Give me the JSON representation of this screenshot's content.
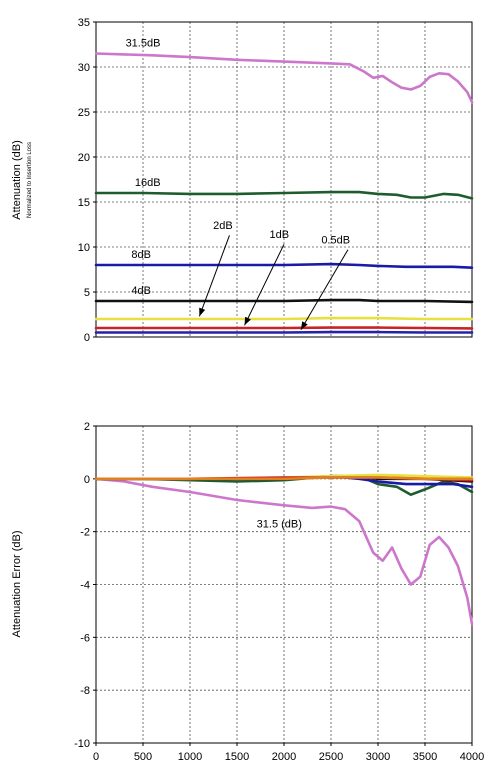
{
  "chart_data": [
    {
      "type": "line",
      "ylabel": "Attenuation (dB)",
      "ylabel_sub": "Normalized to Insertion Loss",
      "xlim": [
        0,
        4000
      ],
      "ylim": [
        0,
        35
      ],
      "x_ticks": [
        0,
        500,
        1000,
        1500,
        2000,
        2500,
        3000,
        3500,
        4000
      ],
      "y_ticks": [
        0,
        5,
        10,
        15,
        20,
        25,
        30,
        35
      ],
      "grid": true,
      "series": [
        {
          "name": "31.5dB",
          "color": "#cc77cc",
          "x": [
            0,
            300,
            600,
            1000,
            1500,
            2000,
            2500,
            2700,
            2850,
            2950,
            3050,
            3150,
            3250,
            3350,
            3450,
            3550,
            3650,
            3750,
            3850,
            3950,
            4000
          ],
          "y": [
            31.5,
            31.4,
            31.3,
            31.1,
            30.8,
            30.6,
            30.4,
            30.3,
            29.5,
            28.8,
            29.0,
            28.3,
            27.7,
            27.5,
            27.9,
            28.9,
            29.3,
            29.2,
            28.4,
            27.2,
            26.1
          ]
        },
        {
          "name": "16dB",
          "color": "#1e5c2e",
          "x": [
            0,
            500,
            1000,
            1500,
            2000,
            2500,
            2800,
            3000,
            3200,
            3350,
            3500,
            3700,
            3850,
            4000
          ],
          "y": [
            16.0,
            16.0,
            15.9,
            15.9,
            16.0,
            16.1,
            16.1,
            15.9,
            15.8,
            15.5,
            15.5,
            15.9,
            15.8,
            15.4
          ]
        },
        {
          "name": "8dB",
          "color": "#1a1aa8",
          "x": [
            0,
            500,
            1000,
            1500,
            2000,
            2500,
            2800,
            3000,
            3300,
            3600,
            3800,
            4000
          ],
          "y": [
            8.0,
            8.0,
            8.0,
            8.0,
            8.0,
            8.1,
            8.0,
            7.9,
            7.8,
            7.8,
            7.8,
            7.7
          ]
        },
        {
          "name": "4dB",
          "color": "#111111",
          "x": [
            0,
            1000,
            2000,
            2500,
            2800,
            3000,
            3500,
            4000
          ],
          "y": [
            4.0,
            4.0,
            4.0,
            4.1,
            4.1,
            4.0,
            4.0,
            3.9
          ]
        },
        {
          "name": "2dB",
          "color": "#e8e040",
          "x": [
            0,
            1000,
            2000,
            2500,
            3000,
            3500,
            4000
          ],
          "y": [
            2.0,
            2.0,
            2.0,
            2.1,
            2.1,
            2.0,
            2.0
          ]
        },
        {
          "name": "1dB",
          "color": "#cc2222",
          "x": [
            0,
            1000,
            2000,
            2500,
            3000,
            3500,
            4000
          ],
          "y": [
            1.0,
            1.0,
            1.0,
            1.05,
            1.05,
            1.0,
            0.95
          ]
        },
        {
          "name": "0.5dB",
          "color": "#2222aa",
          "x": [
            0,
            1000,
            2000,
            2500,
            3000,
            3500,
            4000
          ],
          "y": [
            0.5,
            0.5,
            0.5,
            0.55,
            0.55,
            0.5,
            0.5
          ]
        }
      ],
      "annotations": [
        {
          "text": "31.5dB",
          "x": 500,
          "y": 32.3
        },
        {
          "text": "16dB",
          "x": 550,
          "y": 16.8
        },
        {
          "text": "8dB",
          "x": 480,
          "y": 8.8
        },
        {
          "text": "4dB",
          "x": 480,
          "y": 4.8
        },
        {
          "text": "2dB",
          "x": 1350,
          "y": 12.0
        },
        {
          "text": "1dB",
          "x": 1950,
          "y": 11.0
        },
        {
          "text": "0.5dB",
          "x": 2550,
          "y": 10.4
        }
      ],
      "arrows": [
        {
          "from": [
            1420,
            11.3
          ],
          "to": [
            1100,
            2.3
          ]
        },
        {
          "from": [
            2000,
            10.3
          ],
          "to": [
            1580,
            1.3
          ]
        },
        {
          "from": [
            2680,
            9.7
          ],
          "to": [
            2180,
            0.8
          ]
        }
      ]
    },
    {
      "type": "line",
      "ylabel": "Attenuation Error (dB)",
      "xlim": [
        0,
        4000
      ],
      "ylim": [
        -10,
        2
      ],
      "x_ticks": [
        0,
        500,
        1000,
        1500,
        2000,
        2500,
        3000,
        3500,
        4000
      ],
      "y_ticks": [
        -10,
        -8,
        -6,
        -4,
        -2,
        0,
        2
      ],
      "grid": true,
      "series": [
        {
          "name": "31.5",
          "color": "#cc77cc",
          "x": [
            0,
            300,
            600,
            1000,
            1500,
            2000,
            2300,
            2500,
            2650,
            2800,
            2950,
            3050,
            3150,
            3250,
            3350,
            3450,
            3550,
            3650,
            3750,
            3850,
            3950,
            4000
          ],
          "y": [
            0,
            -0.1,
            -0.3,
            -0.5,
            -0.8,
            -1.0,
            -1.1,
            -1.05,
            -1.15,
            -1.6,
            -2.8,
            -3.1,
            -2.6,
            -3.4,
            -4.0,
            -3.7,
            -2.5,
            -2.2,
            -2.6,
            -3.3,
            -4.5,
            -5.5
          ]
        },
        {
          "name": "16",
          "color": "#1e5c2e",
          "x": [
            0,
            500,
            1000,
            1500,
            2000,
            2500,
            2800,
            3000,
            3200,
            3350,
            3500,
            3700,
            3850,
            4000
          ],
          "y": [
            0,
            0,
            -0.05,
            -0.1,
            -0.05,
            0.1,
            0.1,
            -0.2,
            -0.3,
            -0.6,
            -0.4,
            -0.1,
            -0.2,
            -0.5
          ]
        },
        {
          "name": "8",
          "color": "#1a1aa8",
          "x": [
            0,
            500,
            1000,
            1500,
            2000,
            2500,
            2800,
            3000,
            3300,
            3600,
            3800,
            4000
          ],
          "y": [
            0,
            0,
            0,
            0,
            0,
            0.1,
            0,
            -0.1,
            -0.2,
            -0.2,
            -0.2,
            -0.3
          ]
        },
        {
          "name": "4",
          "color": "#111111",
          "x": [
            0,
            1000,
            2000,
            2500,
            2800,
            3000,
            3500,
            4000
          ],
          "y": [
            0,
            0,
            0,
            0.1,
            0.1,
            0,
            0,
            -0.1
          ]
        },
        {
          "name": "2",
          "color": "#e8e040",
          "x": [
            0,
            1000,
            2000,
            2500,
            3000,
            3500,
            4000
          ],
          "y": [
            0,
            0,
            0.05,
            0.1,
            0.15,
            0.1,
            0.05
          ]
        },
        {
          "name": "1",
          "color": "#cc2222",
          "x": [
            0,
            1000,
            2000,
            2500,
            3000,
            3500,
            4000
          ],
          "y": [
            0,
            0,
            0.05,
            0.05,
            0.05,
            0,
            -0.05
          ]
        },
        {
          "name": "0.5",
          "color": "#e08020",
          "x": [
            0,
            1000,
            2000,
            2500,
            3000,
            3500,
            4000
          ],
          "y": [
            0,
            0,
            0,
            0.05,
            0.05,
            0,
            0
          ]
        }
      ],
      "annotations": [
        {
          "text": "31.5 (dB)",
          "x": 1950,
          "y": -1.85
        }
      ],
      "arrows": []
    }
  ]
}
